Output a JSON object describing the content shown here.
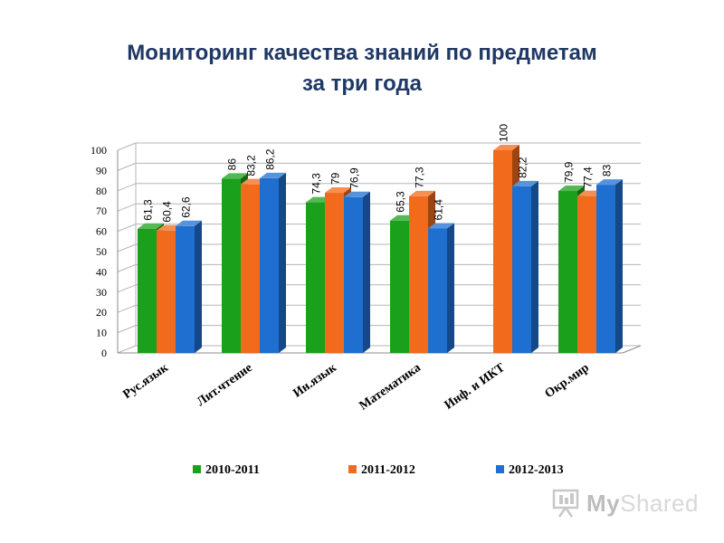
{
  "header": {
    "title_line1": "Мониторинг качества знаний по предметам",
    "title_line2": "за три года"
  },
  "watermark": {
    "brand_bold": "My",
    "brand_rest": "Shared",
    "icon": "presentation-board-icon"
  },
  "chart_data": {
    "type": "bar",
    "categories": [
      "Рус.язык",
      "Лит.чтение",
      "Ин.язык",
      "Математика",
      "Инф. и ИКТ",
      "Окр.мир"
    ],
    "series": [
      {
        "name": "2010-2011",
        "color": "#1ba01b",
        "values": [
          61.3,
          86,
          74.3,
          65.3,
          null,
          79.9
        ],
        "labels": [
          "61,3",
          "86",
          "74,3",
          "65,3",
          "",
          "79,9"
        ]
      },
      {
        "name": "2011-2012",
        "color": "#f26a1b",
        "values": [
          60.4,
          83.2,
          79,
          77.3,
          100,
          77.4
        ],
        "labels": [
          "60,4",
          "83,2",
          "79",
          "77,3",
          "100",
          "77,4"
        ]
      },
      {
        "name": "2012-2013",
        "color": "#1f6fd1",
        "values": [
          62.6,
          86.2,
          76.9,
          61.4,
          82.2,
          83
        ],
        "labels": [
          "62,6",
          "86,2",
          "76,9",
          "61,4",
          "82,2",
          "83"
        ]
      }
    ],
    "ylim": [
      0,
      100
    ],
    "yticks": [
      "0",
      "10",
      "20",
      "30",
      "40",
      "50",
      "60",
      "70",
      "80",
      "90",
      "100"
    ],
    "grid": true,
    "legend_position": "bottom",
    "bar_style": "3d"
  }
}
